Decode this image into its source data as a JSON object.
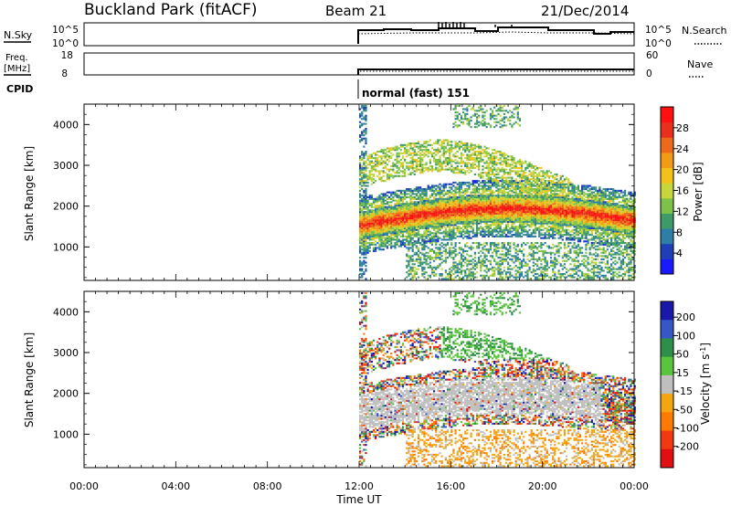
{
  "header": {
    "station": "Buckland Park (fitACF)",
    "beam": "Beam 21",
    "date": "21/Dec/2014"
  },
  "top_panels": {
    "nsky_label": "N.Sky",
    "nsky_ticks": [
      "10^5",
      "10^0"
    ],
    "nsearch_label": "N.Search",
    "nsearch_ticks": [
      "10^5",
      "10^0"
    ],
    "freq_label": "Freq.",
    "freq_unit": "[MHz]",
    "freq_ticks": [
      "18",
      "8"
    ],
    "nave_label": "Nave",
    "nave_ticks": [
      "60",
      "0"
    ],
    "cpid_label": "CPID",
    "cpid_value": "normal (fast) 151"
  },
  "power_colorbar": {
    "label": "Power [dB]",
    "ticks": [
      "28",
      "24",
      "20",
      "16",
      "12",
      "8",
      "4"
    ],
    "colors": [
      "#1a1aff",
      "#1f3fb8",
      "#2e7fa8",
      "#3f9a6a",
      "#7cc24a",
      "#c7d63a",
      "#f2c21b",
      "#f39a17",
      "#ee6a1a",
      "#e8301d",
      "#ff1010"
    ]
  },
  "velocity_colorbar": {
    "label_main": "Velocity [m s",
    "label_sup": "-1",
    "label_end": "]",
    "ticks": [
      "200",
      "100",
      "50",
      "15",
      "-15",
      "-50",
      "-100",
      "-200"
    ],
    "colors": [
      "#1818aa",
      "#3657c8",
      "#2e8f4a",
      "#58c53a",
      "#bfbfbf",
      "#f3a512",
      "#ff7a00",
      "#f23a12",
      "#e01010"
    ]
  },
  "chart_data": [
    {
      "type": "heatmap",
      "panel": "power",
      "ylabel": "Slant Range [km]",
      "ylim": [
        180,
        4500
      ],
      "y_ticks": [
        1000,
        2000,
        3000,
        4000
      ],
      "xlim": [
        "00:00",
        "24:00"
      ],
      "data_start": "12:00",
      "features": [
        {
          "band": "main echo layer",
          "start": "12:00",
          "end": "24:00",
          "range_km": [
            1300,
            2000
          ],
          "peak_power_db": 28
        },
        {
          "band": "upper patchy echoes",
          "start": "12:30",
          "end": "21:00",
          "range_km": [
            2200,
            3800
          ],
          "peak_power_db": 16
        },
        {
          "band": "near-range echoes",
          "start": "14:00",
          "end": "24:00",
          "range_km": [
            200,
            1100
          ],
          "peak_power_db": 12
        }
      ]
    },
    {
      "type": "heatmap",
      "panel": "velocity",
      "ylabel": "Slant Range [km]",
      "ylim": [
        180,
        4500
      ],
      "y_ticks": [
        1000,
        2000,
        3000,
        4000
      ],
      "xlabel": "Time UT",
      "x_ticks": [
        "00:00",
        "04:00",
        "08:00",
        "12:00",
        "16:00",
        "20:00",
        "00:00"
      ],
      "xlim": [
        "00:00",
        "24:00"
      ],
      "data_start": "12:00",
      "features": [
        {
          "band": "ground scatter",
          "start": "12:00",
          "end": "22:30",
          "range_km": [
            900,
            2400
          ],
          "velocity_ms": [
            -15,
            15
          ]
        },
        {
          "band": "receding echoes",
          "start": "13:00",
          "end": "24:00",
          "range_km": [
            200,
            2500
          ],
          "velocity_ms": [
            -100,
            -15
          ]
        },
        {
          "band": "approaching echoes",
          "start": "15:30",
          "end": "21:00",
          "range_km": [
            2800,
            4500
          ],
          "velocity_ms": [
            15,
            100
          ]
        }
      ]
    }
  ]
}
